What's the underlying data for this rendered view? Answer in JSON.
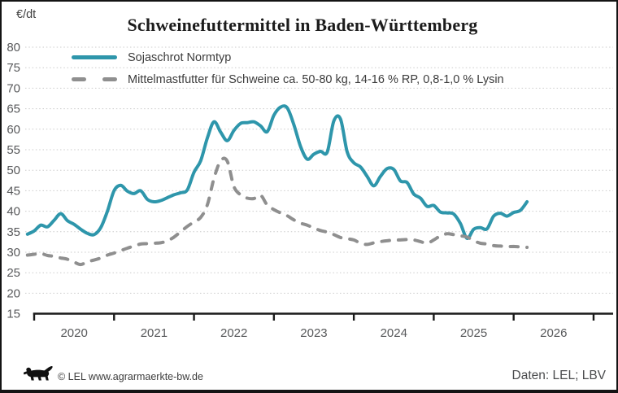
{
  "chart_data": {
    "type": "line",
    "title": "Schweinefuttermittel in Baden-Württemberg",
    "y_unit": "€/dt",
    "ylim": [
      15,
      80
    ],
    "y_ticks": [
      15,
      20,
      25,
      30,
      35,
      40,
      45,
      50,
      55,
      60,
      65,
      70,
      75,
      80
    ],
    "x_tick_years": [
      "2020",
      "2021",
      "2022",
      "2023",
      "2024",
      "2025",
      "2026"
    ],
    "x_range": {
      "start": "2019-12",
      "end": "2026-03",
      "interval": "monthly"
    },
    "grid": "horizontal-dotted",
    "legend_position": "top-left",
    "series": [
      {
        "name": "Sojaschrot Normtyp",
        "color": "#2e96ab",
        "style": "solid",
        "values": [
          34.4,
          35.2,
          36.6,
          36.2,
          37.8,
          39.4,
          37.7,
          36.8,
          35.6,
          34.6,
          34.3,
          36.0,
          40.0,
          45.0,
          46.3,
          44.9,
          44.3,
          45.0,
          42.9,
          42.3,
          42.6,
          43.3,
          44.0,
          44.5,
          45.2,
          49.5,
          52.3,
          57.8,
          61.8,
          59.3,
          57.2,
          59.7,
          61.4,
          61.6,
          61.8,
          60.8,
          59.4,
          63.4,
          65.4,
          65.2,
          61.1,
          55.8,
          52.7,
          53.9,
          54.6,
          54.4,
          62.0,
          62.5,
          54.5,
          51.8,
          50.8,
          48.5,
          46.2,
          48.5,
          50.4,
          50.2,
          47.4,
          47.0,
          44.2,
          43.2,
          41.2,
          41.4,
          39.8,
          39.6,
          39.3,
          37.0,
          33.4,
          35.6,
          36.0,
          35.7,
          38.8,
          39.5,
          38.8,
          39.7,
          40.2,
          42.3
        ]
      },
      {
        "name": "Mittelmastfutter für Schweine ca. 50-80 kg, 14-16 % RP, 0,8-1,0 % Lysin",
        "color": "#8f8f8f",
        "style": "dashed",
        "values": [
          29.3,
          29.5,
          29.7,
          29.2,
          29.0,
          28.6,
          28.3,
          27.6,
          27.0,
          27.7,
          28.1,
          28.6,
          29.3,
          29.8,
          30.4,
          31.0,
          31.5,
          32.0,
          32.1,
          32.2,
          32.3,
          32.8,
          33.7,
          35.0,
          36.3,
          37.4,
          38.5,
          41.5,
          48.0,
          52.3,
          52.2,
          46.0,
          44.0,
          43.2,
          43.1,
          43.9,
          41.5,
          40.4,
          39.6,
          38.9,
          37.9,
          37.1,
          36.6,
          35.9,
          35.3,
          34.9,
          34.3,
          33.6,
          33.3,
          33.0,
          32.2,
          31.9,
          32.3,
          32.6,
          32.8,
          33.0,
          33.0,
          33.1,
          33.0,
          32.6,
          32.2,
          33.0,
          34.0,
          34.5,
          34.3,
          34.0,
          33.7,
          32.8,
          32.2,
          32.0,
          31.6,
          31.5,
          31.4,
          31.4,
          31.3,
          31.2
        ]
      }
    ]
  },
  "footer": {
    "copyright": "© LEL www.agrarmaerkte-bw.de",
    "source": "Daten: LEL; LBV"
  }
}
